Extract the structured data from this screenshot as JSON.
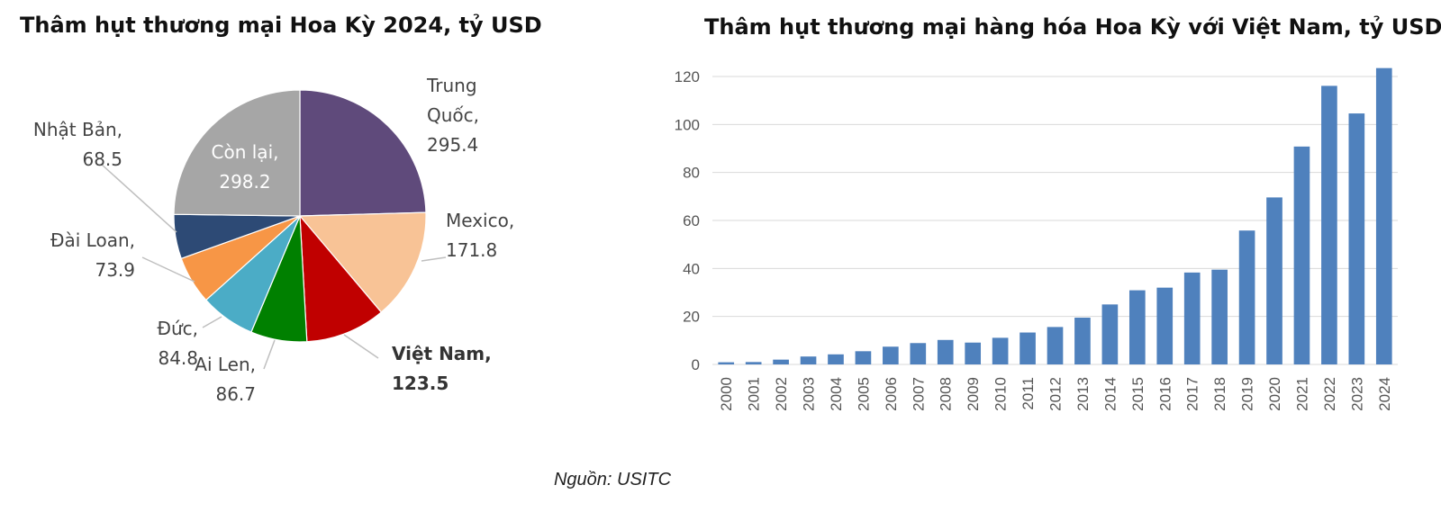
{
  "chart_data": [
    {
      "type": "pie",
      "title": "Thâm hụt thương mại Hoa Kỳ 2024, tỷ USD",
      "slices": [
        {
          "label": "Trung Quốc,",
          "value": 295.4,
          "value_text": "295.4",
          "color": "#5f4a7b",
          "bold": false
        },
        {
          "label": "Mexico,",
          "value": 171.8,
          "value_text": "171.8",
          "color": "#f8c396",
          "bold": false
        },
        {
          "label": "Việt Nam,",
          "value": 123.5,
          "value_text": "123.5",
          "color": "#c00000",
          "bold": true
        },
        {
          "label": "Ai Len,",
          "value": 86.7,
          "value_text": "86.7",
          "color": "#008000",
          "bold": false
        },
        {
          "label": "Đức,",
          "value": 84.8,
          "value_text": "84.8",
          "color": "#4bacc6",
          "bold": false
        },
        {
          "label": "Đài Loan,",
          "value": 73.9,
          "value_text": "73.9",
          "color": "#f79646",
          "bold": false
        },
        {
          "label": "Nhật Bản,",
          "value": 68.5,
          "value_text": "68.5",
          "color": "#2d4a75",
          "bold": false
        },
        {
          "label": "Còn lại,",
          "value": 298.2,
          "value_text": "298.2",
          "color": "#a6a6a6",
          "bold": false
        }
      ]
    },
    {
      "type": "bar",
      "title": "Thâm hụt thương mại hàng hóa Hoa Kỳ với Việt Nam, tỷ USD",
      "categories": [
        "2000",
        "2001",
        "2002",
        "2003",
        "2004",
        "2005",
        "2006",
        "2007",
        "2008",
        "2009",
        "2010",
        "2011",
        "2012",
        "2013",
        "2014",
        "2015",
        "2016",
        "2017",
        "2018",
        "2019",
        "2020",
        "2021",
        "2022",
        "2023",
        "2024"
      ],
      "values": [
        0.9,
        1.0,
        2.0,
        3.3,
        4.2,
        5.5,
        7.4,
        8.9,
        10.2,
        9.1,
        11.1,
        13.3,
        15.6,
        19.5,
        25.0,
        30.9,
        32.0,
        38.3,
        39.5,
        55.8,
        69.6,
        90.8,
        116.1,
        104.6,
        123.5
      ],
      "ylim": [
        0,
        120
      ],
      "yticks": [
        0,
        20,
        40,
        60,
        80,
        100,
        120
      ],
      "color": "#4f81bd",
      "grid": true
    }
  ],
  "source": "Nguồn: USITC"
}
